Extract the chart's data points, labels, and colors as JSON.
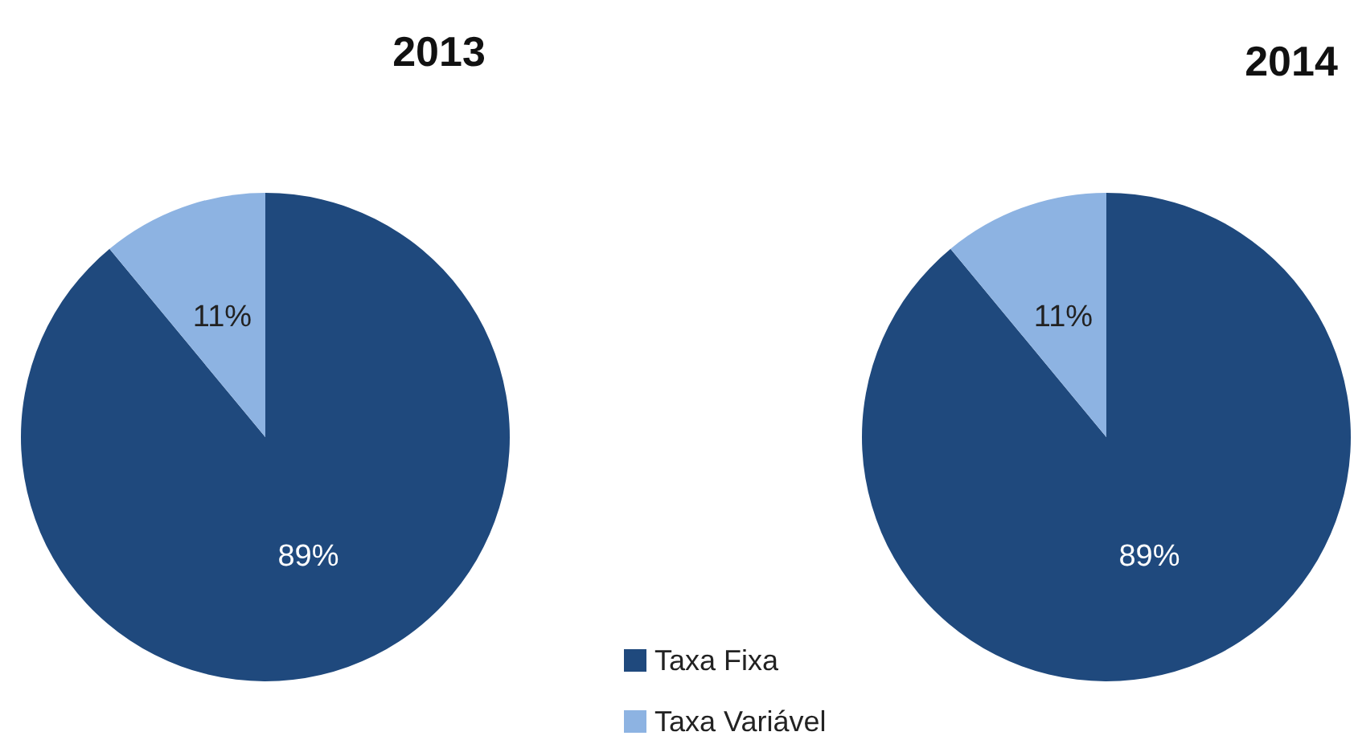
{
  "chart_data": [
    {
      "type": "pie",
      "title": "2013",
      "categories": [
        "Taxa Fixa",
        "Taxa Variável"
      ],
      "values": [
        89,
        11
      ],
      "colors": [
        "#1f497d",
        "#8db3e2"
      ],
      "value_labels": [
        "89%",
        "11%"
      ],
      "legend": "bottom right"
    },
    {
      "type": "pie",
      "title": "2014",
      "categories": [
        null,
        null
      ],
      "values": [
        89,
        11
      ],
      "colors": [
        "#1f497d",
        "#8db3e2"
      ],
      "value_labels": [
        "89%",
        "11%"
      ]
    }
  ]
}
